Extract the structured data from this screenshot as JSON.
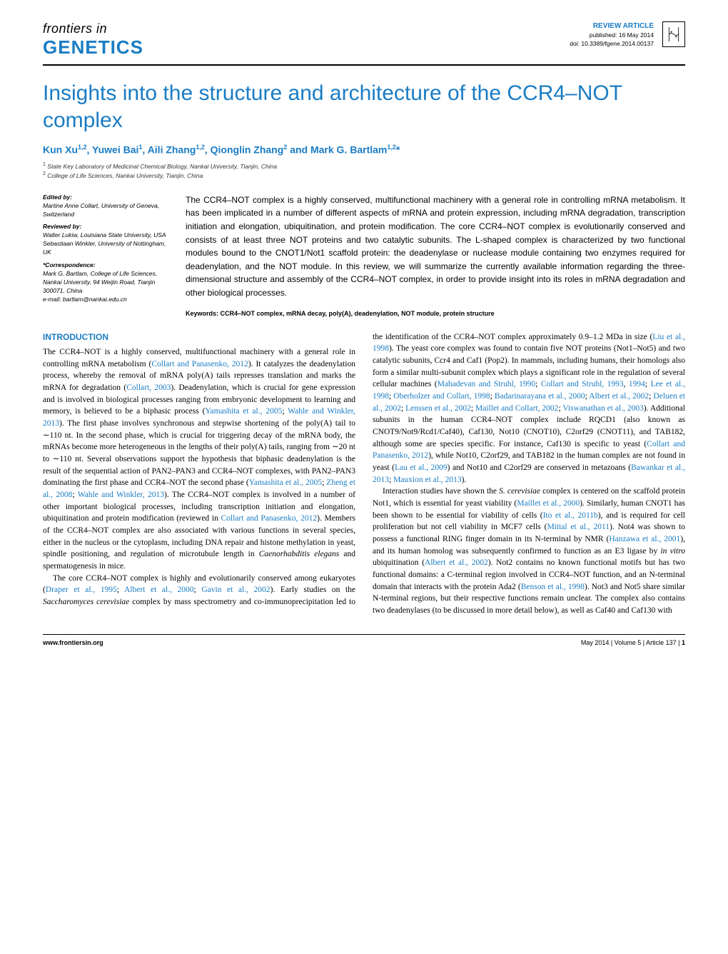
{
  "journal": {
    "top": "frontiers in",
    "bottom": "GENETICS"
  },
  "article_meta": {
    "type": "REVIEW ARTICLE",
    "published": "published: 16 May 2014",
    "doi": "doi: 10.3389/fgene.2014.00137"
  },
  "title": "Insights into the structure and architecture of the CCR4–NOT complex",
  "authors_html": "Kun Xu<sup>1,2</sup>, Yuwei Bai<sup>1</sup>, Aili Zhang<sup>1,2</sup>, Qionglin Zhang<sup>2</sup> and Mark G. Bartlam<sup>1,2</sup>*",
  "affiliations": [
    "State Key Laboratory of Medicinal Chemical Biology, Nankai University, Tianjin, China",
    "College of Life Sciences, Nankai University, Tianjin, China"
  ],
  "edited_by": {
    "label": "Edited by:",
    "text": "Martine Anne Collart, University of Geneva, Switzerland"
  },
  "reviewed_by": {
    "label": "Reviewed by:",
    "lines": [
      "Walter Lukiw, Louisiana State University, USA",
      "Sebastiaan Winkler, University of Nottingham, UK"
    ]
  },
  "correspondence": {
    "label": "*Correspondence:",
    "text": "Mark G. Bartlam, College of Life Sciences, Nankai University, 94 Weijin Road, Tianjin 300071, China",
    "email": "e-mail: bartlam@nankai.edu.cn"
  },
  "abstract": "The CCR4–NOT complex is a highly conserved, multifunctional machinery with a general role in controlling mRNA metabolism. It has been implicated in a number of different aspects of mRNA and protein expression, including mRNA degradation, transcription initiation and elongation, ubiquitination, and protein modification. The core CCR4–NOT complex is evolutionarily conserved and consists of at least three NOT proteins and two catalytic subunits. The L-shaped complex is characterized by two functional modules bound to the CNOT1/Not1 scaffold protein: the deadenylase or nuclease module containing two enzymes required for deadenylation, and the NOT module. In this review, we will summarize the currently available information regarding the three-dimensional structure and assembly of the CCR4–NOT complex, in order to provide insight into its roles in mRNA degradation and other biological processes.",
  "keywords": "Keywords: CCR4–NOT complex, mRNA decay, poly(A), deadenylation, NOT module, protein structure",
  "introduction_heading": "INTRODUCTION",
  "body": {
    "p1_a": "The CCR4–NOT is a highly conserved, multifunctional machinery with a general role in controlling mRNA metabolism (",
    "p1_ref1": "Collart and Panasenko, 2012",
    "p1_b": "). It catalyzes the deadenylation process, whereby the removal of mRNA poly(A) tails represses translation and marks the mRNA for degradation (",
    "p1_ref2": "Collart, 2003",
    "p1_c": "). Deadenylation, which is crucial for gene expression and is involved in biological processes ranging from embryonic development to learning and memory, is believed to be a biphasic process (",
    "p1_ref3": "Yamashita et al., 2005",
    "p1_d": "; ",
    "p1_ref4": "Wahle and Winkler, 2013",
    "p1_e": "). The first phase involves synchronous and stepwise shortening of the poly(A) tail to ∼110 nt. In the second phase, which is crucial for triggering decay of the mRNA body, the mRNAs become more heterogeneous in the lengths of their poly(A) tails, ranging from ∼20 nt to ∼110 nt. Several observations support the hypothesis that biphasic deadenylation is the result of the sequential action of PAN2–PAN3 and CCR4–NOT complexes, with PAN2–PAN3 dominating the first phase and CCR4–NOT the second phase (",
    "p1_ref5": "Yamashita et al., 2005",
    "p1_f": "; ",
    "p1_ref6": "Zheng et al., 2008",
    "p1_g": "; ",
    "p1_ref7": "Wahle and Winkler, 2013",
    "p1_h": "). The CCR4–NOT complex is involved in a number of other important biological processes, including transcription initiation and elongation, ubiquitination and protein modification (reviewed in ",
    "p1_ref8": "Collart and Panasenko, 2012",
    "p1_i": "). Members of the CCR4–NOT complex are also associated with various functions in several species, either in the nucleus or the cytoplasm, including DNA repair and histone methylation in yeast, spindle positioning, and regulation of microtubule length in ",
    "p1_italic": "Caenorhabditis elegans",
    "p1_j": " and spermatogenesis in mice.",
    "p2_a": "The core CCR4–NOT complex is highly and evolutionarily conserved among eukaryotes (",
    "p2_ref1": "Draper et al., 1995",
    "p2_b": "; ",
    "p2_ref2": "Albert et al., 2000",
    "p2_c": "; ",
    "p2_ref3": "Gavin et al., 2002",
    "p2_d": "). Early studies on the ",
    "p2_italic": "Saccharomyces cerevisiae",
    "p2_e": " complex by mass spectrometry and co-immunoprecipitation led to the identification of the CCR4–NOT complex approximately 0.9–1.2 MDa in size (",
    "p2_ref4": "Liu et al., 1998",
    "p2_f": "). The yeast core complex was found to contain five NOT proteins (Not1–Not5) and two catalytic subunits, Ccr4 and Caf1 (Pop2). In mammals, including humans, their homologs also form a similar multi-subunit complex which plays a significant role in the regulation of several cellular machines (",
    "p2_ref5": "Mahadevan and Struhl, 1990",
    "p2_g": "; ",
    "p2_ref6": "Collart and Struhl, 1993",
    "p2_h": ", ",
    "p2_ref7": "1994",
    "p2_i": "; ",
    "p2_ref8": "Lee et al., 1998",
    "p2_j": "; ",
    "p2_ref9": "Oberholzer and Collart, 1998",
    "p2_k": "; ",
    "p2_ref10": "Badarinarayana et al., 2000",
    "p2_l": "; ",
    "p2_ref11": "Albert et al., 2002",
    "p2_m": "; ",
    "p2_ref12": "Deluen et al., 2002",
    "p2_n": "; ",
    "p2_ref13": "Lenssen et al., 2002",
    "p2_o": "; ",
    "p2_ref14": "Maillet and Collart, 2002",
    "p2_p": "; ",
    "p2_ref15": "Viswanathan et al., 2003",
    "p2_q": "). Additional subunits in the human CCR4–NOT complex include RQCD1 (also known as CNOT9/Not9/Rcd1/Caf40), Caf130, Not10 (CNOT10), C2orf29 (CNOT11), and TAB182, although some are species specific. For instance, Caf130 is specific to yeast (",
    "p2_ref16": "Collart and Panasenko, 2012",
    "p2_r": "), while Not10, C2orf29, and TAB182 in the human complex are not found in yeast (",
    "p2_ref17": "Lau et al., 2009",
    "p2_s": ") and Not10 and C2orf29 are conserved in metazoans (",
    "p2_ref18": "Bawankar et al., 2013",
    "p2_t": "; ",
    "p2_ref19": "Mauxion et al., 2013",
    "p2_u": ").",
    "p3_a": "Interaction studies have shown the ",
    "p3_italic1": "S. cerevisiae",
    "p3_b": " complex is centered on the scaffold protein Not1, which is essential for yeast viability (",
    "p3_ref1": "Maillet et al., 2000",
    "p3_c": "). Similarly, human CNOT1 has been shown to be essential for viability of cells (",
    "p3_ref2": "Ito et al., 2011b",
    "p3_d": "), and is required for cell proliferation but not cell viability in MCF7 cells (",
    "p3_ref3": "Mittal et al., 2011",
    "p3_e": "). Not4 was shown to possess a functional RING finger domain in its N-terminal by NMR (",
    "p3_ref4": "Hanzawa et al., 2001",
    "p3_f": "), and its human homolog was subsequently confirmed to function as an E3 ligase by ",
    "p3_italic2": "in vitro",
    "p3_g": " ubiquitination (",
    "p3_ref5": "Albert et al., 2002",
    "p3_h": "). Not2 contains no known functional motifs but has two functional domains: a C-terminal region involved in CCR4–NOT function, and an N-terminal domain that interacts with the protein Ada2 (",
    "p3_ref6": "Benson et al., 1998",
    "p3_i": "). Not3 and Not5 share similar N-terminal regions, but their respective functions remain unclear. The complex also contains two deadenylases (to be discussed in more detail below), as well as Caf40 and Caf130 with"
  },
  "footer": {
    "left": "www.frontiersin.org",
    "right_a": "May 2014 | Volume 5 | Article 137 | ",
    "right_page": "1"
  },
  "colors": {
    "brand": "#1a7cc4",
    "text": "#000000"
  }
}
